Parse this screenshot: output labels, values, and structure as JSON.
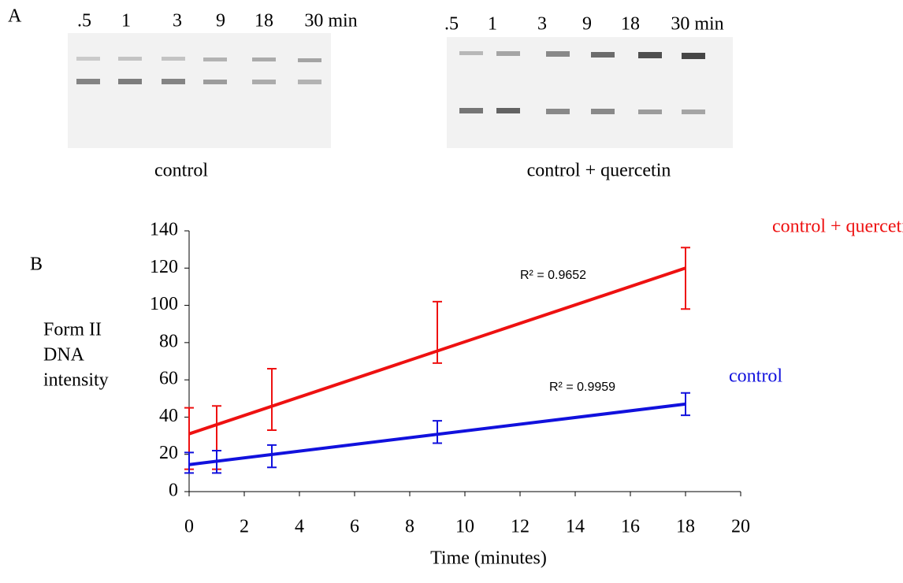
{
  "panel_a": {
    "label": "A",
    "gels": [
      {
        "lanes": [
          ".5",
          "1",
          "3",
          "9",
          "18",
          "30 min"
        ],
        "caption": "control"
      },
      {
        "lanes": [
          ".5",
          "1",
          "3",
          "9",
          "18",
          "30 min"
        ],
        "caption": "control + quercetin"
      }
    ]
  },
  "chart_data": {
    "type": "scatter",
    "panel_label": "B",
    "ylabel": [
      "Form II",
      "DNA",
      "intensity"
    ],
    "xlabel": "Time (minutes)",
    "xlim": [
      0,
      20
    ],
    "xticks": [
      0,
      2,
      4,
      6,
      8,
      10,
      12,
      14,
      16,
      18,
      20
    ],
    "ylim": [
      0,
      140
    ],
    "yticks": [
      0,
      20,
      40,
      60,
      80,
      100,
      120,
      140
    ],
    "series": [
      {
        "name": "control + quercetin",
        "color": "#ee1111",
        "x": [
          0,
          1,
          3,
          9,
          18
        ],
        "values": [
          28.5,
          29,
          49.5,
          85.5,
          114.5
        ],
        "errors": [
          16.5,
          17,
          16.5,
          16.5,
          16.5
        ],
        "trend": {
          "x": [
            0,
            18
          ],
          "y": [
            31,
            120
          ]
        },
        "r2_label": "R² = 0.9652"
      },
      {
        "name": "control",
        "color": "#1111dd",
        "x": [
          0,
          1,
          3,
          9,
          18
        ],
        "values": [
          15.5,
          16,
          19,
          32,
          47
        ],
        "errors": [
          5.5,
          6,
          6,
          6,
          6
        ],
        "trend": {
          "x": [
            0,
            18
          ],
          "y": [
            14.5,
            47
          ]
        },
        "r2_label": "R² = 0.9959"
      }
    ]
  }
}
